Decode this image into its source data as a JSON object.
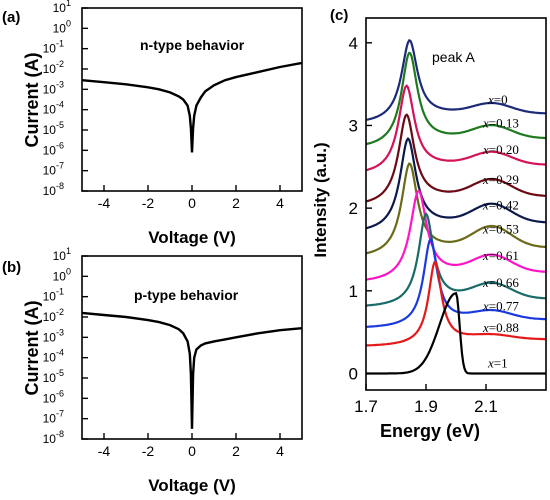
{
  "chart_data": [
    {
      "id": "a",
      "panel_label": "(a)",
      "type": "line",
      "annotation": "n-type behavior",
      "xlabel": "Voltage (V)",
      "ylabel": "Current (A)",
      "xlim": [
        -5,
        5
      ],
      "ylim_log10": [
        -8,
        1
      ],
      "xticks": [
        -4,
        -2,
        0,
        2,
        4
      ],
      "xtick_labels": [
        "-4",
        "-2",
        "0",
        "2",
        "4"
      ],
      "yticks_log10": [
        1,
        0,
        -1,
        -2,
        -3,
        -4,
        -5,
        -6,
        -7,
        -8
      ],
      "ytick_labels": [
        {
          "base": "10",
          "exp": "1"
        },
        {
          "base": "10",
          "exp": "0"
        },
        {
          "base": "10",
          "exp": "-1"
        },
        {
          "base": "10",
          "exp": "-2"
        },
        {
          "base": "10",
          "exp": "-3"
        },
        {
          "base": "10",
          "exp": "-4"
        },
        {
          "base": "10",
          "exp": "-5"
        },
        {
          "base": "10",
          "exp": "-6"
        },
        {
          "base": "10",
          "exp": "-7"
        },
        {
          "base": "10",
          "exp": "-8"
        }
      ],
      "series": [
        {
          "color": "#000000",
          "x": [
            -5,
            -4,
            -3,
            -2,
            -1.5,
            -1,
            -0.6,
            -0.4,
            -0.2,
            -0.1,
            -0.05,
            0,
            0.05,
            0.1,
            0.2,
            0.4,
            0.6,
            1,
            1.5,
            2,
            3,
            4,
            5
          ],
          "y_log10": [
            -2.55,
            -2.65,
            -2.75,
            -2.9,
            -3.0,
            -3.15,
            -3.35,
            -3.5,
            -3.8,
            -4.3,
            -4.9,
            -6.1,
            -4.9,
            -4.3,
            -3.8,
            -3.4,
            -3.1,
            -2.8,
            -2.55,
            -2.4,
            -2.15,
            -1.9,
            -1.7
          ]
        }
      ]
    },
    {
      "id": "b",
      "panel_label": "(b)",
      "type": "line",
      "annotation": "p-type behavior",
      "xlabel": "Voltage (V)",
      "ylabel": "Current (A)",
      "xlim": [
        -5,
        5
      ],
      "ylim_log10": [
        -8,
        1
      ],
      "xticks": [
        -4,
        -2,
        0,
        2,
        4
      ],
      "xtick_labels": [
        "-4",
        "-2",
        "0",
        "2",
        "4"
      ],
      "yticks_log10": [
        1,
        0,
        -1,
        -2,
        -3,
        -4,
        -5,
        -6,
        -7,
        -8
      ],
      "ytick_labels": [
        {
          "base": "10",
          "exp": "1"
        },
        {
          "base": "10",
          "exp": "0"
        },
        {
          "base": "10",
          "exp": "-1"
        },
        {
          "base": "10",
          "exp": "-2"
        },
        {
          "base": "10",
          "exp": "-3"
        },
        {
          "base": "10",
          "exp": "-4"
        },
        {
          "base": "10",
          "exp": "-5"
        },
        {
          "base": "10",
          "exp": "-6"
        },
        {
          "base": "10",
          "exp": "-7"
        },
        {
          "base": "10",
          "exp": "-8"
        }
      ],
      "series": [
        {
          "color": "#000000",
          "x": [
            -5,
            -4,
            -3,
            -2,
            -1.5,
            -1,
            -0.6,
            -0.4,
            -0.2,
            -0.1,
            -0.05,
            0,
            0.05,
            0.1,
            0.2,
            0.4,
            0.6,
            1,
            1.5,
            2,
            3,
            4,
            5
          ],
          "y_log10": [
            -1.8,
            -1.9,
            -2.0,
            -2.15,
            -2.25,
            -2.4,
            -2.6,
            -2.8,
            -3.2,
            -3.8,
            -4.8,
            -7.5,
            -4.8,
            -4.0,
            -3.6,
            -3.4,
            -3.3,
            -3.2,
            -3.1,
            -3.0,
            -2.8,
            -2.65,
            -2.55
          ]
        }
      ]
    },
    {
      "id": "c",
      "panel_label": "(c)",
      "type": "line",
      "annotation": "peak A",
      "xlabel": "Energy (eV)",
      "ylabel": "Intensity (a.u.)",
      "xlim": [
        1.7,
        2.3
      ],
      "ylim": [
        -0.2,
        4.3
      ],
      "xticks": [
        1.7,
        1.9,
        2.1
      ],
      "xtick_labels": [
        "1.7",
        "1.9",
        "2.1"
      ],
      "yticks": [
        0,
        1,
        2,
        3,
        4
      ],
      "ytick_labels": [
        "0",
        "1",
        "2",
        "3",
        "4"
      ],
      "series": [
        {
          "name": "x=0",
          "var": "x",
          "eq": "=0",
          "color": "#1c2a7a",
          "baseline": 3.02,
          "peak_x": 1.845,
          "peak_h": 0.95,
          "width": 0.032,
          "tail": 0.12,
          "shoulder_h": 0.12
        },
        {
          "name": "x=0.13",
          "var": "x",
          "eq": "=0.13",
          "color": "#1f7a1f",
          "baseline": 2.72,
          "peak_x": 1.845,
          "peak_h": 1.1,
          "width": 0.032,
          "tail": 0.12,
          "shoulder_h": 0.15
        },
        {
          "name": "x=0.20",
          "var": "x",
          "eq": "=0.20",
          "color": "#d4145a",
          "baseline": 2.4,
          "peak_x": 1.835,
          "peak_h": 1.02,
          "width": 0.032,
          "tail": 0.12,
          "shoulder_h": 0.15
        },
        {
          "name": "x=0.29",
          "var": "x",
          "eq": "=0.29",
          "color": "#6b0a14",
          "baseline": 2.02,
          "peak_x": 1.835,
          "peak_h": 1.05,
          "width": 0.032,
          "tail": 0.12,
          "shoulder_h": 0.2
        },
        {
          "name": "x=0.42",
          "var": "x",
          "eq": "=0.42",
          "color": "#0b1a4a",
          "baseline": 1.7,
          "peak_x": 1.84,
          "peak_h": 1.08,
          "width": 0.032,
          "tail": 0.12,
          "shoulder_h": 0.22
        },
        {
          "name": "x=0.53",
          "var": "x",
          "eq": "=0.53",
          "color": "#6b6a1a",
          "baseline": 1.4,
          "peak_x": 1.845,
          "peak_h": 1.08,
          "width": 0.032,
          "tail": 0.12,
          "shoulder_h": 0.25
        },
        {
          "name": "x=0.61",
          "var": "x",
          "eq": "=0.61",
          "color": "#ff14c8",
          "baseline": 1.1,
          "peak_x": 1.875,
          "peak_h": 1.05,
          "width": 0.033,
          "tail": 0.12,
          "shoulder_h": 0.2
        },
        {
          "name": "x=0.66",
          "var": "x",
          "eq": "=0.66",
          "color": "#1a6a6a",
          "baseline": 0.8,
          "peak_x": 1.9,
          "peak_h": 1.08,
          "width": 0.03,
          "tail": 0.1,
          "shoulder_h": 0.18
        },
        {
          "name": "x=0.77",
          "var": "x",
          "eq": "=0.77",
          "color": "#1a3adf",
          "baseline": 0.55,
          "peak_x": 1.915,
          "peak_h": 1.02,
          "width": 0.028,
          "tail": 0.1,
          "shoulder_h": 0.1
        },
        {
          "name": "x=0.88",
          "var": "x",
          "eq": "=0.88",
          "color": "#e41a1a",
          "baseline": 0.33,
          "peak_x": 1.93,
          "peak_h": 0.98,
          "width": 0.026,
          "tail": 0.08,
          "shoulder_h": 0.05
        },
        {
          "name": "x=1",
          "var": "x",
          "eq": "=1",
          "color": "#000000",
          "baseline": 0.0,
          "peak_x": 2.0,
          "peak_h": 0.97,
          "width": 0.022,
          "tail": 0.05,
          "shoulder_h": 0.0
        }
      ]
    }
  ]
}
